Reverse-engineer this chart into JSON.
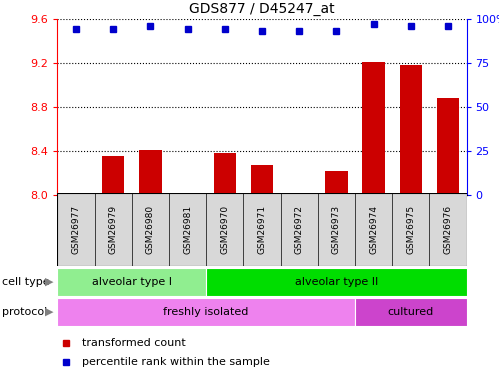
{
  "title": "GDS877 / D45247_at",
  "samples": [
    "GSM26977",
    "GSM26979",
    "GSM26980",
    "GSM26981",
    "GSM26970",
    "GSM26971",
    "GSM26972",
    "GSM26973",
    "GSM26974",
    "GSM26975",
    "GSM26976"
  ],
  "transformed_count": [
    8.02,
    8.35,
    8.41,
    8.01,
    8.38,
    8.27,
    8.01,
    8.22,
    9.21,
    9.18,
    8.88
  ],
  "percentile_rank": [
    94,
    94,
    96,
    94,
    94,
    93,
    93,
    93,
    97,
    96,
    96
  ],
  "ylim_left": [
    8.0,
    9.6
  ],
  "ylim_right": [
    0,
    100
  ],
  "yticks_left": [
    8.0,
    8.4,
    8.8,
    9.2,
    9.6
  ],
  "yticks_right": [
    0,
    25,
    50,
    75,
    100
  ],
  "bar_color": "#cc0000",
  "dot_color": "#0000cc",
  "cell_type_groups": [
    {
      "label": "alveolar type I",
      "start": 0,
      "end": 3,
      "color": "#90ee90"
    },
    {
      "label": "alveolar type II",
      "start": 4,
      "end": 10,
      "color": "#00dd00"
    }
  ],
  "protocol_groups": [
    {
      "label": "freshly isolated",
      "start": 0,
      "end": 7,
      "color": "#ee82ee"
    },
    {
      "label": "cultured",
      "start": 8,
      "end": 10,
      "color": "#cc44cc"
    }
  ],
  "cell_type_label": "cell type",
  "protocol_label": "protocol",
  "legend_items": [
    {
      "label": "transformed count",
      "color": "#cc0000"
    },
    {
      "label": "percentile rank within the sample",
      "color": "#0000cc"
    }
  ],
  "tick_bg_color": "#d8d8d8",
  "fig_bg_color": "#ffffff"
}
